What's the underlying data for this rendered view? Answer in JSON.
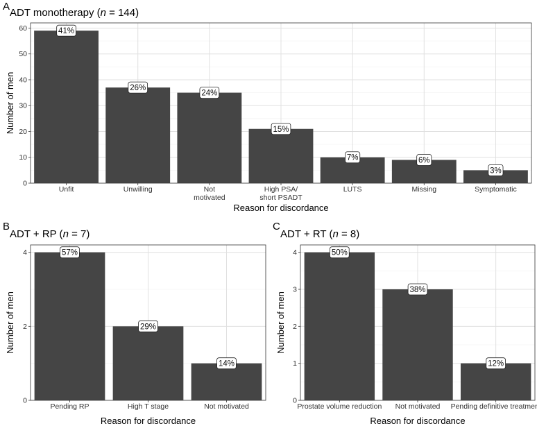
{
  "chart_data": [
    {
      "panel": "A",
      "type": "bar",
      "title_parts": [
        "ADT monotherapy (",
        "n",
        " = 144)"
      ],
      "xlabel": "Reason for discordance",
      "ylabel": "Number of men",
      "categories": [
        [
          "Unfit"
        ],
        [
          "Unwilling"
        ],
        [
          "Not",
          "motivated"
        ],
        [
          "High PSA/",
          "short PSADT"
        ],
        [
          "LUTS"
        ],
        [
          "Missing"
        ],
        [
          "Symptomatic"
        ]
      ],
      "values": [
        59,
        37,
        35,
        21,
        10,
        9,
        5
      ],
      "labels": [
        "41%",
        "26%",
        "24%",
        "15%",
        "7%",
        "6%",
        "3%"
      ],
      "ylim": [
        0,
        62
      ],
      "yticks": [
        0,
        10,
        20,
        30,
        40,
        50,
        60
      ],
      "grid": true,
      "bar_color": "#454545"
    },
    {
      "panel": "B",
      "type": "bar",
      "title_parts": [
        "ADT + RP (",
        "n",
        " = 7)"
      ],
      "xlabel": "Reason for discordance",
      "ylabel": "Number of men",
      "categories": [
        [
          "Pending RP"
        ],
        [
          "High T stage"
        ],
        [
          "Not motivated"
        ]
      ],
      "values": [
        4,
        2,
        1
      ],
      "labels": [
        "57%",
        "29%",
        "14%"
      ],
      "ylim": [
        0,
        4.2
      ],
      "yticks": [
        0,
        2,
        4
      ],
      "grid": true,
      "bar_color": "#454545"
    },
    {
      "panel": "C",
      "type": "bar",
      "title_parts": [
        "ADT + RT (",
        "n",
        " = 8)"
      ],
      "xlabel": "Reason for discordance",
      "ylabel": "Number of men",
      "categories": [
        [
          "Prostate volume reduction"
        ],
        [
          "Not motivated"
        ],
        [
          "Pending definitive treatment"
        ]
      ],
      "values": [
        4,
        3,
        1
      ],
      "labels": [
        "50%",
        "38%",
        "12%"
      ],
      "ylim": [
        0,
        4.2
      ],
      "yticks": [
        0,
        1,
        2,
        3,
        4
      ],
      "grid": true,
      "bar_color": "#454545"
    }
  ]
}
